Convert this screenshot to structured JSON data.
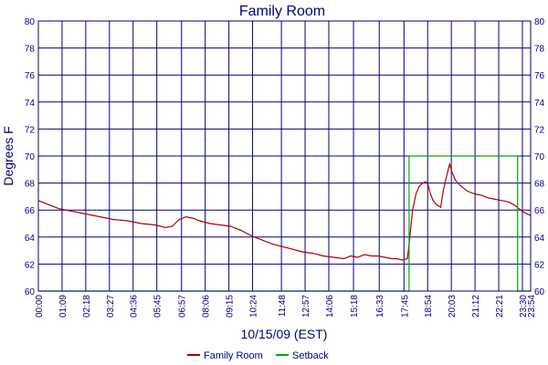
{
  "chart_data": {
    "type": "line",
    "title": "Family Room",
    "xlabel": "10/15/09 (EST)",
    "ylabel": "Degrees F",
    "ylim": [
      60,
      80
    ],
    "y_ticks": [
      60,
      62,
      64,
      66,
      68,
      70,
      72,
      74,
      76,
      78,
      80
    ],
    "x_tick_labels": [
      "00:00",
      "01:09",
      "02:18",
      "03:27",
      "04:36",
      "05:45",
      "06:57",
      "08:06",
      "09:15",
      "10:24",
      "11:48",
      "12:57",
      "14:06",
      "15:18",
      "16:33",
      "17:45",
      "18:54",
      "20:03",
      "21:12",
      "22:21",
      "23:30",
      "23:54"
    ],
    "x_tick_minutes": [
      0,
      69,
      138,
      207,
      276,
      345,
      417,
      486,
      555,
      624,
      708,
      777,
      846,
      918,
      993,
      1065,
      1134,
      1203,
      1272,
      1341,
      1410,
      1434
    ],
    "xlim_minutes": [
      0,
      1434
    ],
    "grid": true,
    "legend_position": "bottom",
    "series": [
      {
        "name": "Family Room",
        "color": "#aa0000",
        "points": [
          [
            0,
            66.7
          ],
          [
            30,
            66.4
          ],
          [
            60,
            66.1
          ],
          [
            100,
            65.9
          ],
          [
            140,
            65.7
          ],
          [
            180,
            65.5
          ],
          [
            220,
            65.3
          ],
          [
            260,
            65.2
          ],
          [
            300,
            65.0
          ],
          [
            340,
            64.9
          ],
          [
            370,
            64.7
          ],
          [
            390,
            64.8
          ],
          [
            410,
            65.3
          ],
          [
            430,
            65.5
          ],
          [
            450,
            65.4
          ],
          [
            470,
            65.2
          ],
          [
            500,
            65.0
          ],
          [
            530,
            64.9
          ],
          [
            560,
            64.8
          ],
          [
            590,
            64.5
          ],
          [
            620,
            64.1
          ],
          [
            650,
            63.8
          ],
          [
            680,
            63.5
          ],
          [
            710,
            63.3
          ],
          [
            740,
            63.1
          ],
          [
            770,
            62.9
          ],
          [
            800,
            62.8
          ],
          [
            830,
            62.6
          ],
          [
            860,
            62.5
          ],
          [
            890,
            62.4
          ],
          [
            910,
            62.6
          ],
          [
            930,
            62.5
          ],
          [
            950,
            62.7
          ],
          [
            970,
            62.6
          ],
          [
            990,
            62.6
          ],
          [
            1010,
            62.5
          ],
          [
            1030,
            62.4
          ],
          [
            1045,
            62.4
          ],
          [
            1060,
            62.3
          ],
          [
            1075,
            62.4
          ],
          [
            1082,
            64.0
          ],
          [
            1090,
            66.0
          ],
          [
            1100,
            67.2
          ],
          [
            1110,
            67.8
          ],
          [
            1120,
            68.0
          ],
          [
            1128,
            68.1
          ],
          [
            1135,
            67.9
          ],
          [
            1142,
            67.2
          ],
          [
            1150,
            66.7
          ],
          [
            1160,
            66.4
          ],
          [
            1172,
            66.2
          ],
          [
            1180,
            67.5
          ],
          [
            1190,
            68.6
          ],
          [
            1198,
            69.4
          ],
          [
            1205,
            68.8
          ],
          [
            1215,
            68.2
          ],
          [
            1230,
            67.8
          ],
          [
            1250,
            67.4
          ],
          [
            1270,
            67.2
          ],
          [
            1290,
            67.1
          ],
          [
            1310,
            66.9
          ],
          [
            1330,
            66.8
          ],
          [
            1350,
            66.7
          ],
          [
            1370,
            66.6
          ],
          [
            1385,
            66.4
          ],
          [
            1395,
            66.2
          ],
          [
            1410,
            65.9
          ],
          [
            1425,
            65.7
          ],
          [
            1434,
            65.6
          ]
        ]
      },
      {
        "name": "Setback",
        "color": "#00aa00",
        "points": [
          [
            0,
            60
          ],
          [
            1080,
            60
          ],
          [
            1080,
            70
          ],
          [
            1396,
            70
          ],
          [
            1396,
            60
          ],
          [
            1434,
            60
          ]
        ]
      }
    ]
  }
}
